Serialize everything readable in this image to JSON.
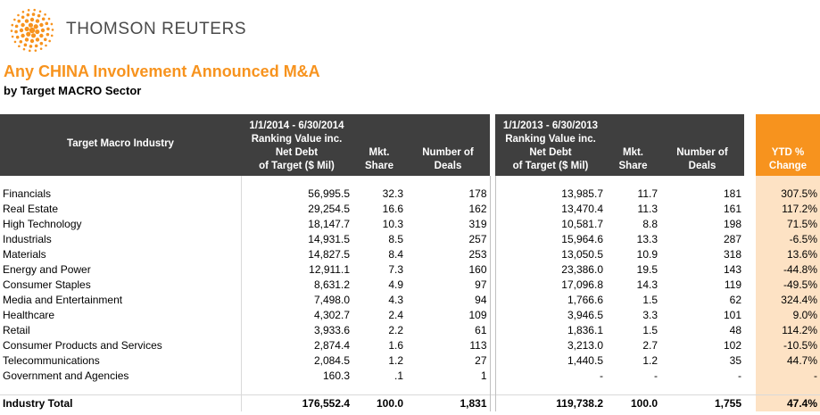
{
  "brand": {
    "name": "THOMSON REUTERS",
    "logo_icon": "thomson-reuters-dot-logo",
    "accent": "#f7931e"
  },
  "title": "Any CHINA Involvement Announced M&A",
  "subtitle": "by Target MACRO Sector",
  "table": {
    "col_industry": "Target Macro Industry",
    "period1": {
      "range": "1/1/2014 - 6/30/2014",
      "value_label_1": "Ranking Value inc.",
      "value_label_2": "Net Debt",
      "value_label_3": "of Target ($ Mil)",
      "share_label_1": "Mkt.",
      "share_label_2": "Share",
      "deals_label_1": "Number of",
      "deals_label_2": "Deals"
    },
    "period2": {
      "range": "1/1/2013 - 6/30/2013",
      "value_label_1": "Ranking Value inc.",
      "value_label_2": "Net Debt",
      "value_label_3": "of Target ($ Mil)",
      "share_label_1": "Mkt.",
      "share_label_2": "Share",
      "deals_label_1": "Number of",
      "deals_label_2": "Deals"
    },
    "ytd_label_1": "YTD %",
    "ytd_label_2": "Change",
    "rows": [
      {
        "industry": "Financials",
        "v1": "56,995.5",
        "s1": "32.3",
        "d1": "178",
        "v2": "13,985.7",
        "s2": "11.7",
        "d2": "181",
        "ytd": "307.5%"
      },
      {
        "industry": "Real Estate",
        "v1": "29,254.5",
        "s1": "16.6",
        "d1": "162",
        "v2": "13,470.4",
        "s2": "11.3",
        "d2": "161",
        "ytd": "117.2%"
      },
      {
        "industry": "High Technology",
        "v1": "18,147.7",
        "s1": "10.3",
        "d1": "319",
        "v2": "10,581.7",
        "s2": "8.8",
        "d2": "198",
        "ytd": "71.5%"
      },
      {
        "industry": "Industrials",
        "v1": "14,931.5",
        "s1": "8.5",
        "d1": "257",
        "v2": "15,964.6",
        "s2": "13.3",
        "d2": "287",
        "ytd": "-6.5%"
      },
      {
        "industry": "Materials",
        "v1": "14,827.5",
        "s1": "8.4",
        "d1": "253",
        "v2": "13,050.5",
        "s2": "10.9",
        "d2": "318",
        "ytd": "13.6%"
      },
      {
        "industry": "Energy and Power",
        "v1": "12,911.1",
        "s1": "7.3",
        "d1": "160",
        "v2": "23,386.0",
        "s2": "19.5",
        "d2": "143",
        "ytd": "-44.8%"
      },
      {
        "industry": "Consumer Staples",
        "v1": "8,631.2",
        "s1": "4.9",
        "d1": "97",
        "v2": "17,096.8",
        "s2": "14.3",
        "d2": "119",
        "ytd": "-49.5%"
      },
      {
        "industry": "Media and Entertainment",
        "v1": "7,498.0",
        "s1": "4.3",
        "d1": "94",
        "v2": "1,766.6",
        "s2": "1.5",
        "d2": "62",
        "ytd": "324.4%"
      },
      {
        "industry": "Healthcare",
        "v1": "4,302.7",
        "s1": "2.4",
        "d1": "109",
        "v2": "3,946.5",
        "s2": "3.3",
        "d2": "101",
        "ytd": "9.0%"
      },
      {
        "industry": "Retail",
        "v1": "3,933.6",
        "s1": "2.2",
        "d1": "61",
        "v2": "1,836.1",
        "s2": "1.5",
        "d2": "48",
        "ytd": "114.2%"
      },
      {
        "industry": "Consumer Products and Services",
        "v1": "2,874.4",
        "s1": "1.6",
        "d1": "113",
        "v2": "3,213.0",
        "s2": "2.7",
        "d2": "102",
        "ytd": "-10.5%"
      },
      {
        "industry": "Telecommunications",
        "v1": "2,084.5",
        "s1": "1.2",
        "d1": "27",
        "v2": "1,440.5",
        "s2": "1.2",
        "d2": "35",
        "ytd": "44.7%"
      },
      {
        "industry": "Government and Agencies",
        "v1": "160.3",
        "s1": ".1",
        "d1": "1",
        "v2": "-",
        "s2": "-",
        "d2": "-",
        "ytd": "-"
      }
    ],
    "total": {
      "industry": "Industry Total",
      "v1": "176,552.4",
      "s1": "100.0",
      "d1": "1,831",
      "v2": "119,738.2",
      "s2": "100.0",
      "d2": "1,755",
      "ytd": "47.4%"
    }
  }
}
